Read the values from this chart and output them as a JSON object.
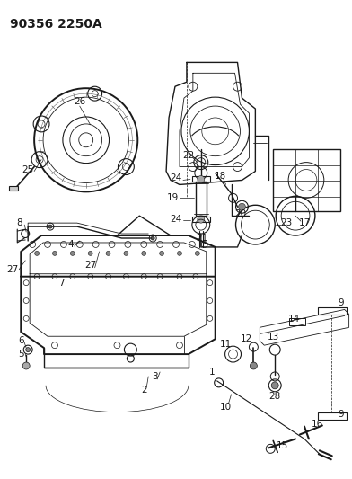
{
  "title": "90356 2250A",
  "bg_color": "#ffffff",
  "line_color": "#1a1a1a",
  "figsize": [
    3.92,
    5.33
  ],
  "dpi": 100,
  "title_fontsize": 10,
  "label_fontsize": 7.5
}
